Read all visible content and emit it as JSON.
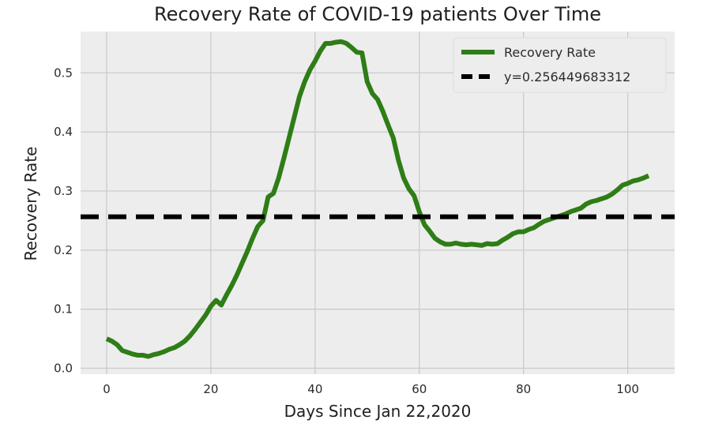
{
  "chart_data": {
    "type": "line",
    "title": "Recovery Rate of COVID-19 patients Over Time",
    "xlabel": "Days Since Jan 22,2020",
    "ylabel": "Recovery Rate",
    "xlim": [
      -5,
      109
    ],
    "ylim": [
      -0.01,
      0.57
    ],
    "xticks": [
      0,
      20,
      40,
      60,
      80,
      100
    ],
    "yticks": [
      0.0,
      0.1,
      0.2,
      0.3,
      0.4,
      0.5
    ],
    "xtick_labels": [
      "0",
      "20",
      "40",
      "60",
      "80",
      "100"
    ],
    "ytick_labels": [
      "0.0",
      "0.1",
      "0.2",
      "0.3",
      "0.4",
      "0.5"
    ],
    "grid": true,
    "legend_position": "top-right",
    "series": [
      {
        "name": "Recovery Rate",
        "color": "#2e7d16",
        "style": "solid",
        "x": [
          0,
          1,
          2,
          3,
          4,
          5,
          6,
          7,
          8,
          9,
          10,
          11,
          12,
          13,
          14,
          15,
          16,
          17,
          18,
          19,
          20,
          21,
          22,
          23,
          24,
          25,
          26,
          27,
          28,
          29,
          30,
          31,
          32,
          33,
          34,
          35,
          36,
          37,
          38,
          39,
          40,
          41,
          42,
          43,
          44,
          45,
          46,
          47,
          48,
          49,
          50,
          51,
          52,
          53,
          54,
          55,
          56,
          57,
          58,
          59,
          60,
          61,
          62,
          63,
          64,
          65,
          66,
          67,
          68,
          69,
          70,
          71,
          72,
          73,
          74,
          75,
          76,
          77,
          78,
          79,
          80,
          81,
          82,
          83,
          84,
          85,
          86,
          87,
          88,
          89,
          90,
          91,
          92,
          93,
          94,
          95,
          96,
          97,
          98,
          99,
          100,
          101,
          102,
          103,
          104
        ],
        "values": [
          0.05,
          0.046,
          0.04,
          0.03,
          0.027,
          0.024,
          0.022,
          0.022,
          0.02,
          0.023,
          0.025,
          0.028,
          0.032,
          0.035,
          0.04,
          0.046,
          0.055,
          0.066,
          0.078,
          0.09,
          0.105,
          0.115,
          0.107,
          0.124,
          0.14,
          0.158,
          0.178,
          0.198,
          0.22,
          0.24,
          0.25,
          0.29,
          0.296,
          0.322,
          0.355,
          0.39,
          0.425,
          0.46,
          0.485,
          0.505,
          0.52,
          0.537,
          0.55,
          0.55,
          0.552,
          0.553,
          0.55,
          0.543,
          0.535,
          0.534,
          0.485,
          0.465,
          0.455,
          0.435,
          0.412,
          0.39,
          0.352,
          0.322,
          0.304,
          0.292,
          0.265,
          0.243,
          0.232,
          0.22,
          0.214,
          0.21,
          0.21,
          0.212,
          0.21,
          0.209,
          0.21,
          0.209,
          0.208,
          0.211,
          0.21,
          0.211,
          0.217,
          0.222,
          0.228,
          0.231,
          0.231,
          0.235,
          0.238,
          0.244,
          0.249,
          0.252,
          0.255,
          0.258,
          0.261,
          0.265,
          0.268,
          0.271,
          0.278,
          0.282,
          0.284,
          0.287,
          0.29,
          0.295,
          0.302,
          0.31,
          0.313,
          0.317,
          0.319,
          0.322,
          0.326
        ]
      },
      {
        "name": "y=0.256449683312",
        "color": "#000000",
        "style": "dashed",
        "x": [
          -5,
          109
        ],
        "values": [
          0.256449683312,
          0.256449683312
        ]
      }
    ]
  }
}
